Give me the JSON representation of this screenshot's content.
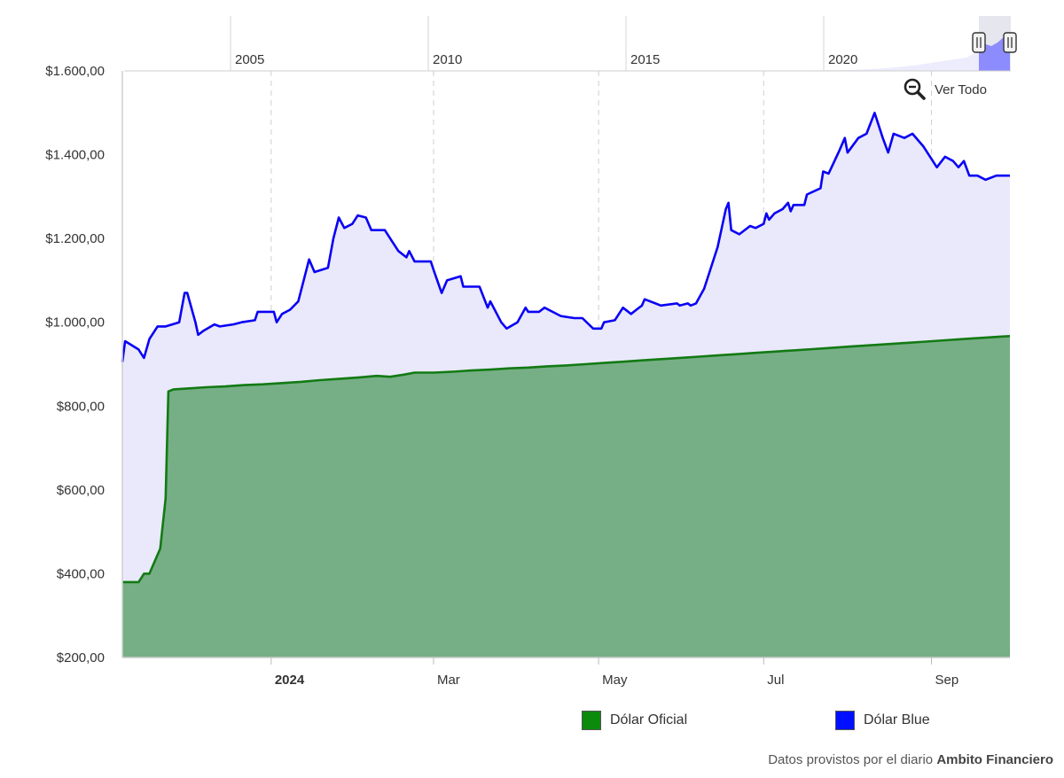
{
  "colors": {
    "oficial_line": "#137a13",
    "oficial_fill": "#76af86",
    "blue_line": "#0a00f5",
    "blue_fill": "#e9e9fb",
    "nav_fill": "#8c8cff",
    "oficial_swatch": "#0b8a0b",
    "blue_swatch": "#0010ff"
  },
  "navigator": {
    "ticks": [
      "2005",
      "2010",
      "2015",
      "2020"
    ]
  },
  "zoom": {
    "label": "Ver Todo",
    "icon": "zoom-out-icon"
  },
  "legend": [
    {
      "label": "Dólar Oficial",
      "color": "#0b8a0b"
    },
    {
      "label": "Dólar Blue",
      "color": "#0010ff"
    }
  ],
  "credit": {
    "prefix": "Datos provistos por el diario",
    "source": "Ambito Financiero"
  },
  "chart_data": {
    "type": "area",
    "grid": "vertical dashed lines at month ticks",
    "legend_position": "bottom",
    "ylim": [
      200,
      1600
    ],
    "y_ticks": [
      "$200,00",
      "$400,00",
      "$600,00",
      "$800,00",
      "$1.000,00",
      "$1.200,00",
      "$1.400,00",
      "$1.600,00"
    ],
    "y_tick_values": [
      200,
      400,
      600,
      800,
      1000,
      1200,
      1400,
      1600
    ],
    "xlim": [
      "2023-11-07",
      "2024-09-30"
    ],
    "x_ticks": [
      {
        "date": "2024-01-01",
        "label": "2024",
        "bold": true
      },
      {
        "date": "2024-03-01",
        "label": "Mar",
        "bold": false
      },
      {
        "date": "2024-05-01",
        "label": "May",
        "bold": false
      },
      {
        "date": "2024-07-01",
        "label": "Jul",
        "bold": false
      },
      {
        "date": "2024-09-01",
        "label": "Sep",
        "bold": false
      }
    ],
    "series": [
      {
        "name": "Dólar Blue",
        "points": [
          [
            "2023-11-07",
            905
          ],
          [
            "2023-11-08",
            955
          ],
          [
            "2023-11-13",
            935
          ],
          [
            "2023-11-15",
            915
          ],
          [
            "2023-11-17",
            960
          ],
          [
            "2023-11-20",
            990
          ],
          [
            "2023-11-23",
            990
          ],
          [
            "2023-11-28",
            1000
          ],
          [
            "2023-11-30",
            1070
          ],
          [
            "2023-12-01",
            1070
          ],
          [
            "2023-12-04",
            1000
          ],
          [
            "2023-12-05",
            970
          ],
          [
            "2023-12-07",
            980
          ],
          [
            "2023-12-11",
            995
          ],
          [
            "2023-12-13",
            990
          ],
          [
            "2023-12-18",
            995
          ],
          [
            "2023-12-21",
            1000
          ],
          [
            "2023-12-26",
            1005
          ],
          [
            "2023-12-27",
            1025
          ],
          [
            "2023-12-29",
            1025
          ],
          [
            "2024-01-02",
            1025
          ],
          [
            "2024-01-03",
            1000
          ],
          [
            "2024-01-05",
            1020
          ],
          [
            "2024-01-08",
            1030
          ],
          [
            "2024-01-11",
            1050
          ],
          [
            "2024-01-15",
            1150
          ],
          [
            "2024-01-17",
            1120
          ],
          [
            "2024-01-22",
            1130
          ],
          [
            "2024-01-24",
            1200
          ],
          [
            "2024-01-26",
            1250
          ],
          [
            "2024-01-28",
            1225
          ],
          [
            "2024-01-31",
            1235
          ],
          [
            "2024-02-02",
            1255
          ],
          [
            "2024-02-05",
            1250
          ],
          [
            "2024-02-07",
            1220
          ],
          [
            "2024-02-12",
            1220
          ],
          [
            "2024-02-15",
            1190
          ],
          [
            "2024-02-17",
            1170
          ],
          [
            "2024-02-20",
            1155
          ],
          [
            "2024-02-21",
            1170
          ],
          [
            "2024-02-23",
            1145
          ],
          [
            "2024-02-29",
            1145
          ],
          [
            "2024-03-01",
            1125
          ],
          [
            "2024-03-04",
            1070
          ],
          [
            "2024-03-06",
            1100
          ],
          [
            "2024-03-11",
            1110
          ],
          [
            "2024-03-12",
            1085
          ],
          [
            "2024-03-18",
            1085
          ],
          [
            "2024-03-21",
            1035
          ],
          [
            "2024-03-22",
            1050
          ],
          [
            "2024-03-26",
            1000
          ],
          [
            "2024-03-28",
            985
          ],
          [
            "2024-04-01",
            1000
          ],
          [
            "2024-04-04",
            1035
          ],
          [
            "2024-04-05",
            1025
          ],
          [
            "2024-04-09",
            1025
          ],
          [
            "2024-04-11",
            1035
          ],
          [
            "2024-04-14",
            1025
          ],
          [
            "2024-04-17",
            1015
          ],
          [
            "2024-04-22",
            1010
          ],
          [
            "2024-04-25",
            1010
          ],
          [
            "2024-04-29",
            985
          ],
          [
            "2024-05-02",
            985
          ],
          [
            "2024-05-03",
            1000
          ],
          [
            "2024-05-07",
            1005
          ],
          [
            "2024-05-10",
            1035
          ],
          [
            "2024-05-13",
            1020
          ],
          [
            "2024-05-15",
            1030
          ],
          [
            "2024-05-17",
            1040
          ],
          [
            "2024-05-18",
            1055
          ],
          [
            "2024-05-22",
            1045
          ],
          [
            "2024-05-24",
            1040
          ],
          [
            "2024-05-30",
            1045
          ],
          [
            "2024-05-31",
            1040
          ],
          [
            "2024-06-03",
            1045
          ],
          [
            "2024-06-04",
            1040
          ],
          [
            "2024-06-06",
            1045
          ],
          [
            "2024-06-09",
            1080
          ],
          [
            "2024-06-10",
            1100
          ],
          [
            "2024-06-14",
            1180
          ],
          [
            "2024-06-17",
            1270
          ],
          [
            "2024-06-18",
            1285
          ],
          [
            "2024-06-19",
            1220
          ],
          [
            "2024-06-22",
            1210
          ],
          [
            "2024-06-26",
            1230
          ],
          [
            "2024-06-28",
            1225
          ],
          [
            "2024-07-01",
            1235
          ],
          [
            "2024-07-02",
            1260
          ],
          [
            "2024-07-03",
            1245
          ],
          [
            "2024-07-05",
            1260
          ],
          [
            "2024-07-08",
            1270
          ],
          [
            "2024-07-10",
            1285
          ],
          [
            "2024-07-11",
            1265
          ],
          [
            "2024-07-12",
            1280
          ],
          [
            "2024-07-16",
            1280
          ],
          [
            "2024-07-17",
            1305
          ],
          [
            "2024-07-22",
            1320
          ],
          [
            "2024-07-23",
            1360
          ],
          [
            "2024-07-25",
            1355
          ],
          [
            "2024-07-29",
            1410
          ],
          [
            "2024-07-31",
            1440
          ],
          [
            "2024-08-01",
            1405
          ],
          [
            "2024-08-05",
            1440
          ],
          [
            "2024-08-08",
            1450
          ],
          [
            "2024-08-11",
            1500
          ],
          [
            "2024-08-14",
            1440
          ],
          [
            "2024-08-16",
            1405
          ],
          [
            "2024-08-18",
            1450
          ],
          [
            "2024-08-22",
            1440
          ],
          [
            "2024-08-25",
            1450
          ],
          [
            "2024-08-29",
            1420
          ],
          [
            "2024-09-01",
            1390
          ],
          [
            "2024-09-03",
            1370
          ],
          [
            "2024-09-06",
            1395
          ],
          [
            "2024-09-09",
            1385
          ],
          [
            "2024-09-11",
            1370
          ],
          [
            "2024-09-13",
            1385
          ],
          [
            "2024-09-15",
            1350
          ],
          [
            "2024-09-18",
            1350
          ],
          [
            "2024-09-21",
            1340
          ],
          [
            "2024-09-25",
            1350
          ],
          [
            "2024-09-30",
            1350
          ]
        ]
      },
      {
        "name": "Dólar Oficial",
        "points": [
          [
            "2023-11-07",
            380
          ],
          [
            "2023-11-13",
            380
          ],
          [
            "2023-11-15",
            400
          ],
          [
            "2023-11-17",
            400
          ],
          [
            "2023-11-21",
            460
          ],
          [
            "2023-11-23",
            580
          ],
          [
            "2023-11-24",
            835
          ],
          [
            "2023-11-26",
            840
          ],
          [
            "2023-12-01",
            842
          ],
          [
            "2023-12-08",
            845
          ],
          [
            "2023-12-15",
            847
          ],
          [
            "2023-12-22",
            850
          ],
          [
            "2023-12-29",
            852
          ],
          [
            "2024-01-05",
            855
          ],
          [
            "2024-01-12",
            858
          ],
          [
            "2024-01-19",
            862
          ],
          [
            "2024-01-26",
            865
          ],
          [
            "2024-02-02",
            868
          ],
          [
            "2024-02-09",
            872
          ],
          [
            "2024-02-14",
            870
          ],
          [
            "2024-02-19",
            875
          ],
          [
            "2024-02-23",
            880
          ],
          [
            "2024-03-01",
            880
          ],
          [
            "2024-03-08",
            882
          ],
          [
            "2024-03-15",
            885
          ],
          [
            "2024-03-22",
            887
          ],
          [
            "2024-03-29",
            890
          ],
          [
            "2024-04-05",
            892
          ],
          [
            "2024-04-12",
            895
          ],
          [
            "2024-04-19",
            897
          ],
          [
            "2024-04-26",
            900
          ],
          [
            "2024-05-03",
            903
          ],
          [
            "2024-05-10",
            906
          ],
          [
            "2024-05-17",
            909
          ],
          [
            "2024-05-24",
            912
          ],
          [
            "2024-05-31",
            915
          ],
          [
            "2024-06-07",
            918
          ],
          [
            "2024-06-14",
            921
          ],
          [
            "2024-06-21",
            924
          ],
          [
            "2024-06-28",
            927
          ],
          [
            "2024-07-05",
            930
          ],
          [
            "2024-07-12",
            933
          ],
          [
            "2024-07-19",
            936
          ],
          [
            "2024-07-26",
            939
          ],
          [
            "2024-08-02",
            942
          ],
          [
            "2024-08-09",
            945
          ],
          [
            "2024-08-16",
            948
          ],
          [
            "2024-08-23",
            951
          ],
          [
            "2024-08-30",
            954
          ],
          [
            "2024-09-06",
            957
          ],
          [
            "2024-09-13",
            960
          ],
          [
            "2024-09-20",
            963
          ],
          [
            "2024-09-27",
            966
          ],
          [
            "2024-09-30",
            967
          ]
        ]
      }
    ]
  }
}
